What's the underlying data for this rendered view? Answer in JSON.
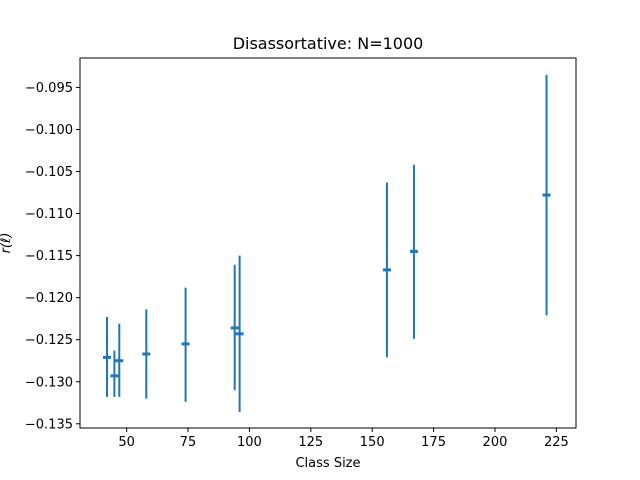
{
  "chart_data": {
    "type": "scatter",
    "title": "Disassortative: N=1000",
    "xlabel": "Class Size",
    "ylabel": "r(ℓ)",
    "xlim": [
      31,
      233
    ],
    "ylim": [
      -0.1355,
      -0.0915
    ],
    "xticks": [
      50,
      75,
      100,
      125,
      150,
      175,
      200,
      225
    ],
    "xtick_labels": [
      "50",
      "75",
      "100",
      "125",
      "150",
      "175",
      "200",
      "225"
    ],
    "yticks": [
      -0.135,
      -0.13,
      -0.125,
      -0.12,
      -0.115,
      -0.11,
      -0.105,
      -0.1,
      -0.095
    ],
    "ytick_labels": [
      "−0.135",
      "−0.130",
      "−0.125",
      "−0.120",
      "−0.115",
      "−0.110",
      "−0.105",
      "−0.100",
      "−0.095"
    ],
    "grid": false,
    "color": "#1f77b4",
    "series": [
      {
        "points": [
          {
            "x": 42,
            "y": -0.1271,
            "ylow": -0.1318,
            "yhigh": -0.1223
          },
          {
            "x": 45,
            "y": -0.1293,
            "ylow": -0.1318,
            "yhigh": -0.1263
          },
          {
            "x": 47,
            "y": -0.1275,
            "ylow": -0.1318,
            "yhigh": -0.1231
          },
          {
            "x": 58,
            "y": -0.1267,
            "ylow": -0.132,
            "yhigh": -0.1214
          },
          {
            "x": 74,
            "y": -0.1255,
            "ylow": -0.1324,
            "yhigh": -0.1188
          },
          {
            "x": 94,
            "y": -0.1236,
            "ylow": -0.131,
            "yhigh": -0.1161
          },
          {
            "x": 96,
            "y": -0.1243,
            "ylow": -0.1336,
            "yhigh": -0.115
          },
          {
            "x": 156,
            "y": -0.1167,
            "ylow": -0.1271,
            "yhigh": -0.1063
          },
          {
            "x": 167,
            "y": -0.1145,
            "ylow": -0.1249,
            "yhigh": -0.1042
          },
          {
            "x": 221,
            "y": -0.1078,
            "ylow": -0.1221,
            "yhigh": -0.0935
          }
        ]
      }
    ]
  }
}
